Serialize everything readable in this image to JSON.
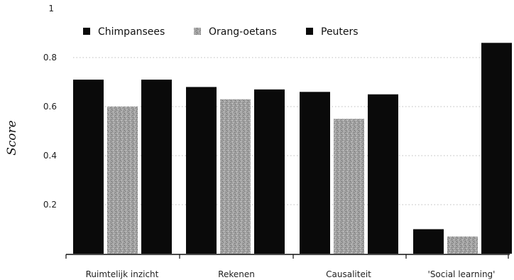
{
  "chart_data": {
    "type": "bar",
    "categories": [
      "Ruimtelijk inzicht",
      "Rekenen",
      "Causaliteit",
      "'Social learning'"
    ],
    "series": [
      {
        "name": "Chimpansees",
        "values": [
          0.71,
          0.68,
          0.66,
          0.1
        ],
        "color": "#0a0a0a",
        "pattern": "solid"
      },
      {
        "name": "Orang-oetans",
        "values": [
          0.6,
          0.63,
          0.55,
          0.07
        ],
        "color": "#9a9a9a",
        "pattern": "speckled"
      },
      {
        "name": "Peuters",
        "values": [
          0.71,
          0.67,
          0.65,
          0.86
        ],
        "color": "#0a0a0a",
        "pattern": "solid"
      }
    ],
    "ylabel": "Score",
    "xlabel": "",
    "ylim": [
      0,
      1
    ],
    "yticks": [
      "1",
      "0.8",
      "0.6",
      "0.4",
      "0.2"
    ],
    "ytick_values": [
      1,
      0.8,
      0.6,
      0.4,
      0.2
    ],
    "grid": true,
    "legend": "top"
  }
}
